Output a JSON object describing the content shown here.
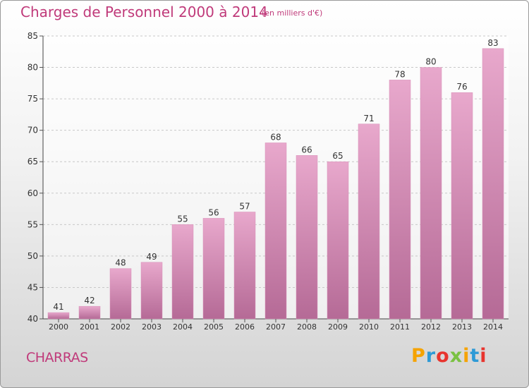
{
  "header": {
    "title": "Charges de Personnel 2000 à 2014",
    "subtitle": "(en milliers d'€)"
  },
  "footer": {
    "commune": "CHARRAS",
    "logo_text": "Proxiti",
    "logo_colors": [
      "#f5a300",
      "#2e9ad6",
      "#e8342e",
      "#7ac142",
      "#f5a300",
      "#2e9ad6",
      "#e8342e"
    ]
  },
  "chart_data": {
    "type": "bar",
    "title": "Charges de Personnel 2000 à 2014",
    "subtitle": "(en milliers d'€)",
    "categories": [
      "2000",
      "2001",
      "2002",
      "2003",
      "2004",
      "2005",
      "2006",
      "2007",
      "2008",
      "2009",
      "2010",
      "2011",
      "2012",
      "2013",
      "2014"
    ],
    "values": [
      41,
      42,
      48,
      49,
      55,
      56,
      57,
      68,
      66,
      65,
      71,
      78,
      80,
      76,
      83
    ],
    "ylim": [
      40,
      85
    ],
    "yticks": [
      40,
      45,
      50,
      55,
      60,
      65,
      70,
      75,
      80,
      85
    ],
    "grid": true,
    "bar_color_top": "#e8a8cc",
    "bar_color_bottom": "#b56a96"
  }
}
